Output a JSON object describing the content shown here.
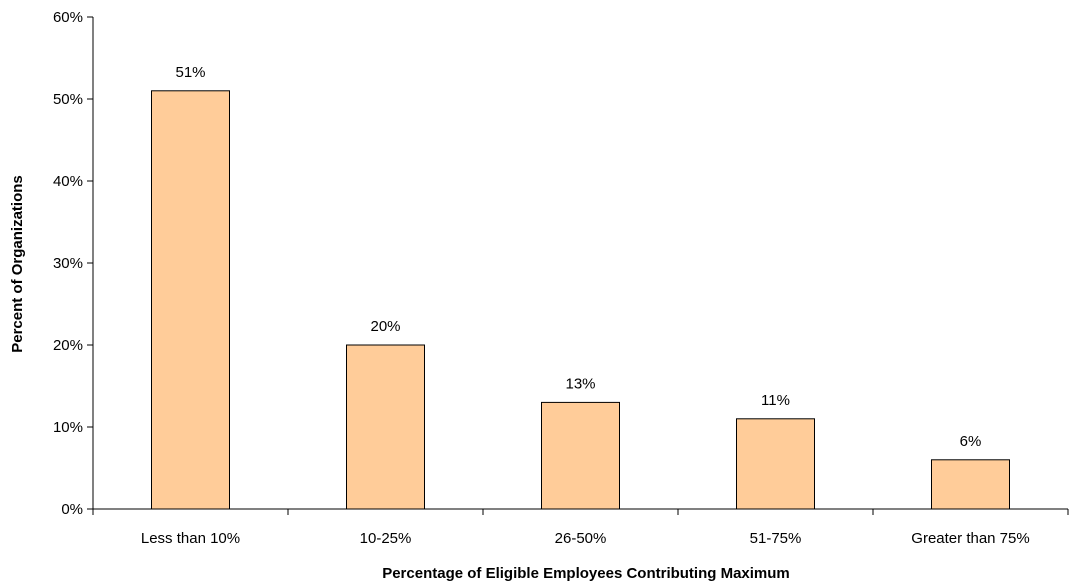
{
  "chart_data": {
    "type": "bar",
    "title": "",
    "xlabel": "Percentage of Eligible Employees Contributing Maximum",
    "ylabel": "Percent of Organizations",
    "categories": [
      "Less than 10%",
      "10-25%",
      "26-50%",
      "51-75%",
      "Greater than 75%"
    ],
    "values": [
      51,
      20,
      13,
      11,
      6
    ],
    "data_labels": [
      "51%",
      "20%",
      "13%",
      "11%",
      "6%"
    ],
    "ylim": [
      0,
      60
    ],
    "yticks": [
      0,
      10,
      20,
      30,
      40,
      50,
      60
    ],
    "ytick_labels": [
      "0%",
      "10%",
      "20%",
      "30%",
      "40%",
      "50%",
      "60%"
    ],
    "grid": false,
    "legend": "none",
    "colors": {
      "bar_fill": "#FFCC99",
      "bar_stroke": "#000000",
      "axis": "#000000",
      "text": "#000000"
    }
  }
}
